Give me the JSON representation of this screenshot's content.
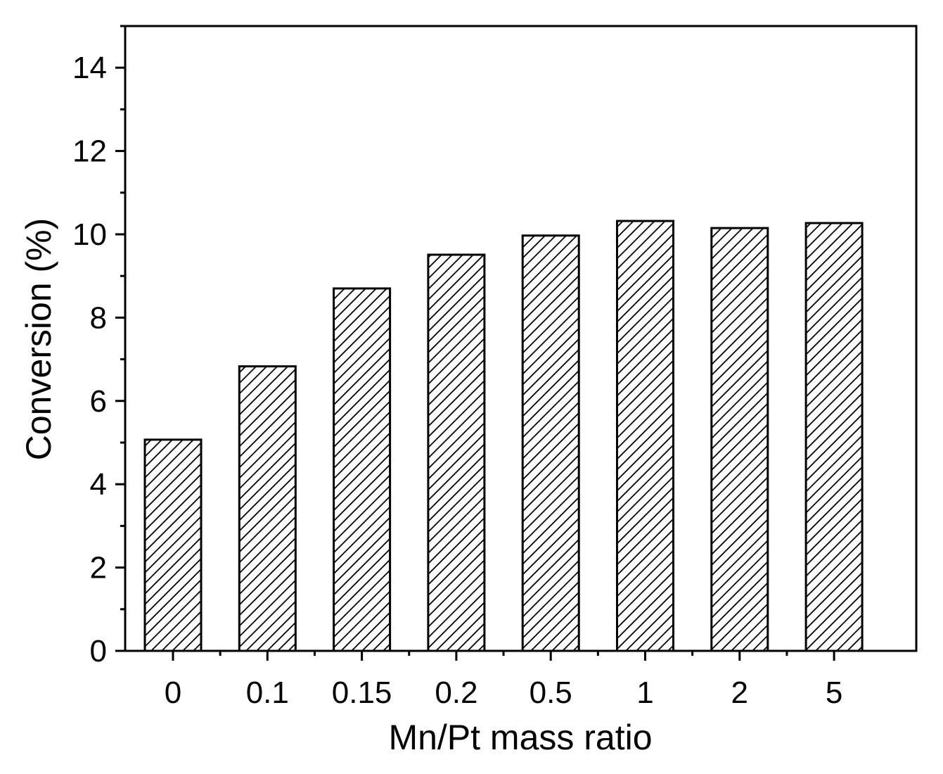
{
  "chart_data": {
    "type": "bar",
    "categories": [
      "0",
      "0.1",
      "0.15",
      "0.2",
      "0.5",
      "1",
      "2",
      "5"
    ],
    "values": [
      5.07,
      6.83,
      8.7,
      9.51,
      9.97,
      10.32,
      10.15,
      10.27
    ],
    "title": "",
    "xlabel": "Mn/Pt mass ratio",
    "ylabel": "Conversion (%)",
    "ylim": [
      0,
      15
    ],
    "yticks": [
      "0",
      "2",
      "4",
      "6",
      "8",
      "10",
      "12",
      "14"
    ],
    "bar_fill": "hatched diagonal",
    "grid": false,
    "legend": "none",
    "colors": {
      "bar_edge": "#000000",
      "hatch": "#000000",
      "background": "#ffffff"
    }
  }
}
